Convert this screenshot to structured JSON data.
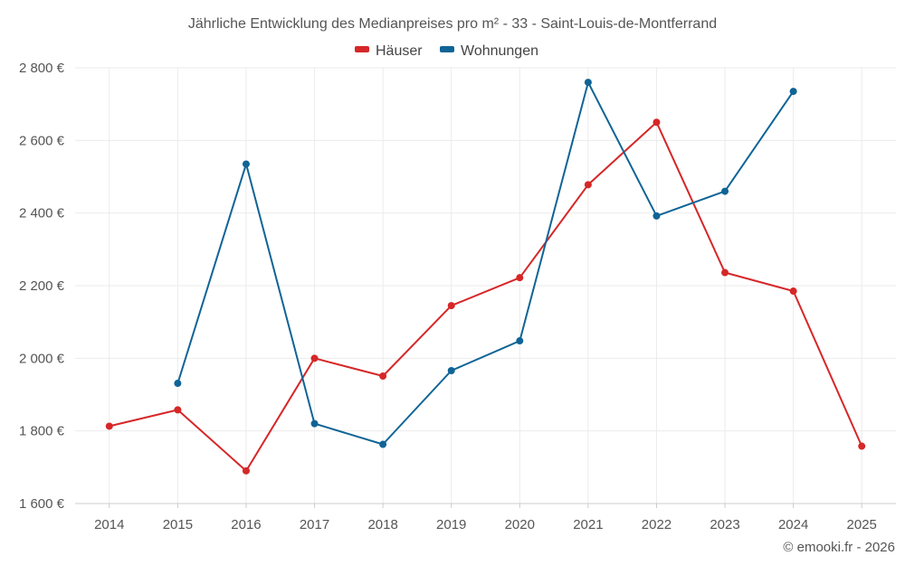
{
  "chart_data": {
    "type": "line",
    "title": "Jährliche Entwicklung des Medianpreises pro m² - 33 - Saint-Louis-de-Montferrand",
    "categories": [
      "2014",
      "2015",
      "2016",
      "2017",
      "2018",
      "2019",
      "2020",
      "2021",
      "2022",
      "2023",
      "2024",
      "2025"
    ],
    "ylim": [
      1600,
      2800
    ],
    "yticks": [
      1600,
      1800,
      2000,
      2200,
      2400,
      2600,
      2800
    ],
    "ytick_labels": [
      "1 600 €",
      "1 800 €",
      "2 000 €",
      "2 200 €",
      "2 400 €",
      "2 600 €",
      "2 800 €"
    ],
    "xlabel": "",
    "ylabel": "",
    "grid": true,
    "legend_position": "top-center",
    "series": [
      {
        "name": "Häuser",
        "color": "#d62728",
        "values": [
          1813,
          1858,
          1690,
          2000,
          1951,
          2145,
          2222,
          2478,
          2650,
          2236,
          2185,
          1758
        ]
      },
      {
        "name": "Wohnungen",
        "color": "#0f6496",
        "values": [
          null,
          1931,
          2535,
          1820,
          1763,
          1966,
          2048,
          2760,
          2392,
          2460,
          2735,
          null
        ]
      }
    ],
    "credit": "© emooki.fr - 2026"
  }
}
